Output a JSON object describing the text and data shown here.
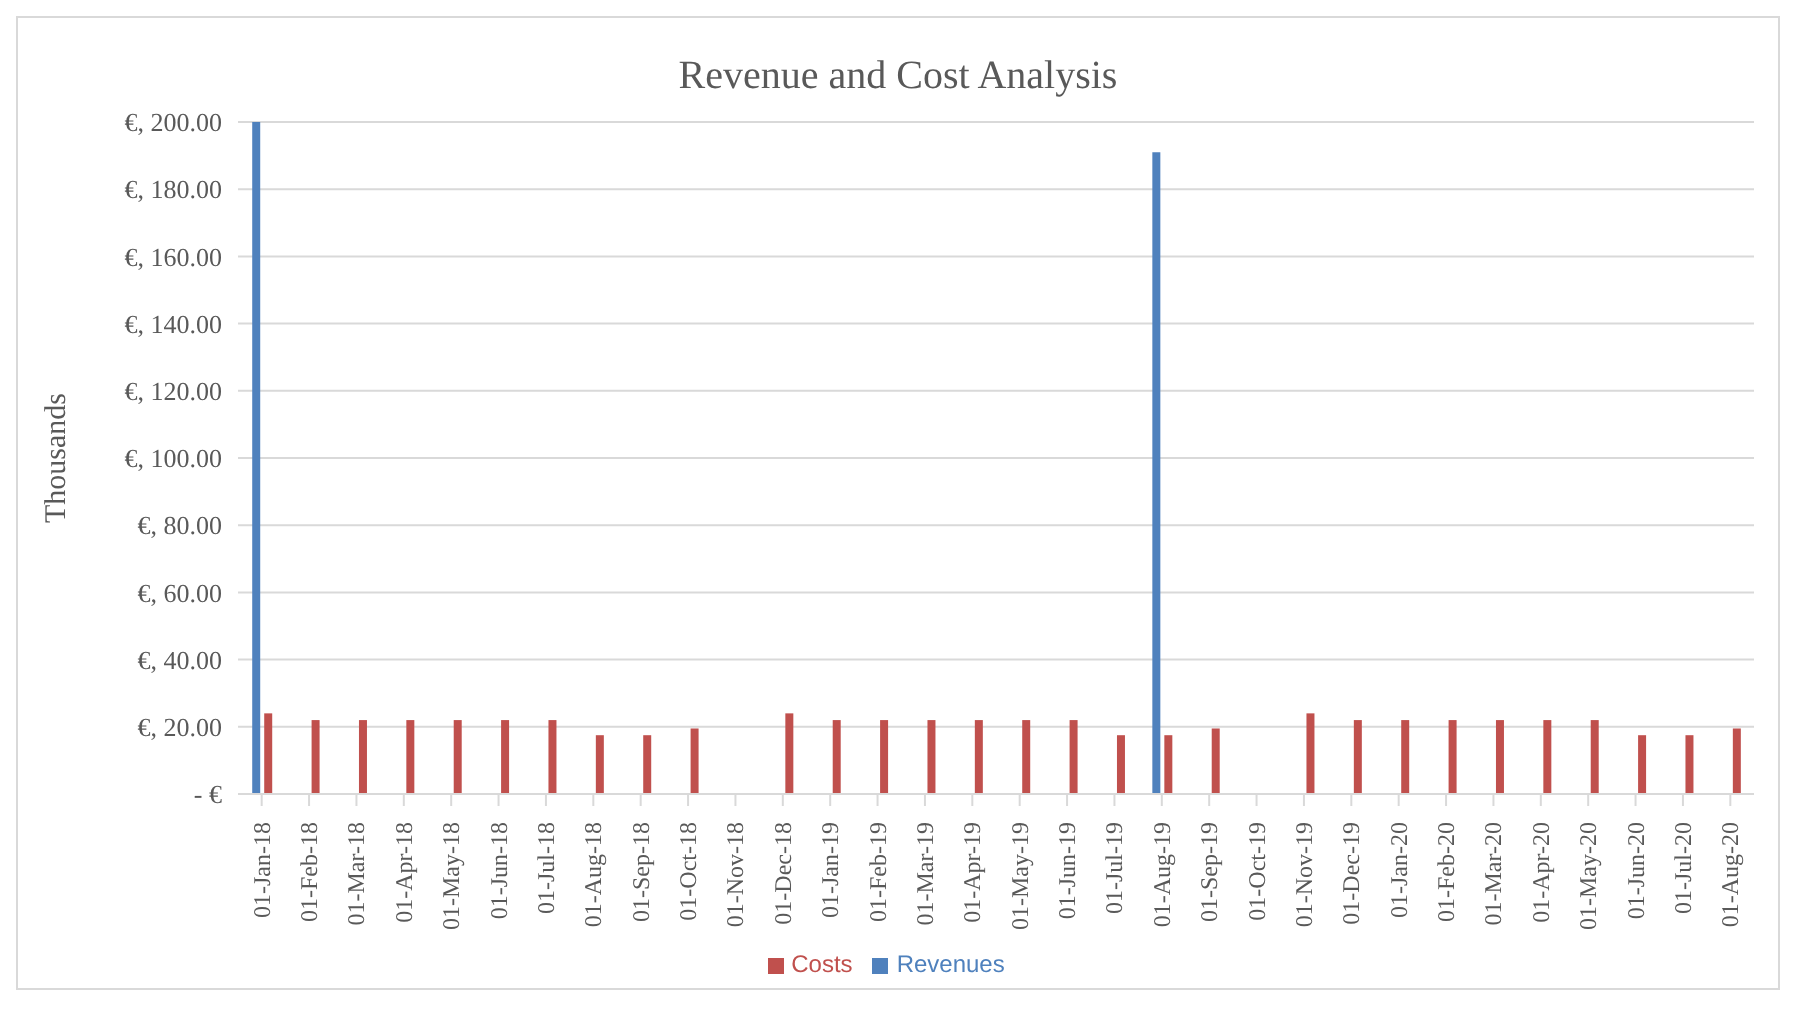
{
  "chart_data": {
    "type": "bar",
    "title": "Revenue and Cost Analysis",
    "ylabel": "Thousands",
    "categories": [
      "01-Jan-18",
      "01-Feb-18",
      "01-Mar-18",
      "01-Apr-18",
      "01-May-18",
      "01-Jun-18",
      "01-Jul-18",
      "01-Aug-18",
      "01-Sep-18",
      "01-Oct-18",
      "01-Nov-18",
      "01-Dec-18",
      "01-Jan-19",
      "01-Feb-19",
      "01-Mar-19",
      "01-Apr-19",
      "01-May-19",
      "01-Jun-19",
      "01-Jul-19",
      "01-Aug-19",
      "01-Sep-19",
      "01-Oct-19",
      "01-Nov-19",
      "01-Dec-19",
      "01-Jan-20",
      "01-Feb-20",
      "01-Mar-20",
      "01-Apr-20",
      "01-May-20",
      "01-Jun-20",
      "01-Jul-20",
      "01-Aug-20"
    ],
    "series": [
      {
        "name": "Revenues",
        "color": "#4f81bd",
        "values": [
          200,
          null,
          null,
          null,
          null,
          null,
          null,
          null,
          null,
          null,
          null,
          null,
          null,
          null,
          null,
          null,
          null,
          null,
          null,
          191,
          null,
          null,
          null,
          null,
          null,
          null,
          null,
          null,
          null,
          null,
          null,
          null
        ]
      },
      {
        "name": "Costs",
        "color": "#c0504d",
        "values": [
          24,
          22,
          22,
          22,
          22,
          22,
          22,
          17.5,
          17.5,
          19.5,
          null,
          24,
          22,
          22,
          22,
          22,
          22,
          22,
          17.5,
          17.5,
          19.5,
          null,
          24,
          22,
          22,
          22,
          22,
          22,
          22,
          17.5,
          17.5,
          19.5
        ]
      }
    ],
    "ylim": [
      0,
      200
    ],
    "yticks": [
      {
        "value": 0,
        "label": "-  €"
      },
      {
        "value": 20,
        "label": "€, 20.00"
      },
      {
        "value": 40,
        "label": "€, 40.00"
      },
      {
        "value": 60,
        "label": "€, 60.00"
      },
      {
        "value": 80,
        "label": "€, 80.00"
      },
      {
        "value": 100,
        "label": "€, 100.00"
      },
      {
        "value": 120,
        "label": "€, 120.00"
      },
      {
        "value": 140,
        "label": "€, 140.00"
      },
      {
        "value": 160,
        "label": "€, 160.00"
      },
      {
        "value": 180,
        "label": "€, 180.00"
      },
      {
        "value": 200,
        "label": "€, 200.00"
      }
    ],
    "grid": "y",
    "legend": "bottom"
  }
}
